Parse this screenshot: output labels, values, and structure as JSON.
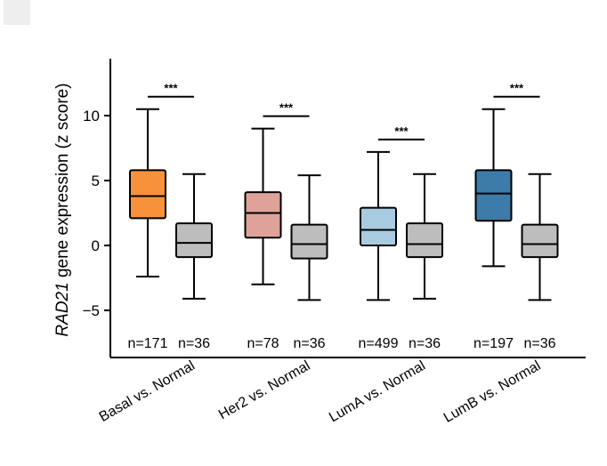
{
  "chart_data": {
    "type": "boxplot",
    "title": "",
    "ylabel_italic": "RAD21",
    "ylabel_rest": " gene expression (z score)",
    "ylim": [
      -8.5,
      14.5
    ],
    "yticks": [
      {
        "value": 10,
        "label": "10"
      },
      {
        "value": 5,
        "label": "5"
      },
      {
        "value": 0,
        "label": "0"
      },
      {
        "value": -5,
        "label": "−5"
      }
    ],
    "groups": [
      {
        "category": "Basal vs. Normal",
        "significance": "***",
        "boxes": [
          {
            "name": "Basal",
            "n_label": "n=171",
            "color": "#f7923a",
            "whisker_low": -2.4,
            "q1": 2.1,
            "median": 3.8,
            "q3": 5.8,
            "whisker_high": 10.5
          },
          {
            "name": "Normal",
            "n_label": "n=36",
            "color": "#bdbdbd",
            "whisker_low": -4.1,
            "q1": -0.9,
            "median": 0.2,
            "q3": 1.7,
            "whisker_high": 5.5
          }
        ]
      },
      {
        "category": "Her2 vs. Normal",
        "significance": "***",
        "boxes": [
          {
            "name": "Her2",
            "n_label": "n=78",
            "color": "#dea29a",
            "whisker_low": -3.0,
            "q1": 0.6,
            "median": 2.5,
            "q3": 4.1,
            "whisker_high": 9.0
          },
          {
            "name": "Normal",
            "n_label": "n=36",
            "color": "#bdbdbd",
            "whisker_low": -4.2,
            "q1": -1.0,
            "median": 0.1,
            "q3": 1.6,
            "whisker_high": 5.4
          }
        ]
      },
      {
        "category": "LumA vs. Normal",
        "significance": "***",
        "boxes": [
          {
            "name": "LumA",
            "n_label": "n=499",
            "color": "#a9cbe0",
            "whisker_low": -4.2,
            "q1": 0.0,
            "median": 1.2,
            "q3": 2.9,
            "whisker_high": 7.2
          },
          {
            "name": "Normal",
            "n_label": "n=36",
            "color": "#bdbdbd",
            "whisker_low": -4.1,
            "q1": -0.9,
            "median": 0.1,
            "q3": 1.7,
            "whisker_high": 5.5
          }
        ]
      },
      {
        "category": "LumB vs. Normal",
        "significance": "***",
        "boxes": [
          {
            "name": "LumB",
            "n_label": "n=197",
            "color": "#3d7ba9",
            "whisker_low": -1.6,
            "q1": 1.9,
            "median": 4.0,
            "q3": 5.8,
            "whisker_high": 10.5
          },
          {
            "name": "Normal",
            "n_label": "n=36",
            "color": "#bdbdbd",
            "whisker_low": -4.2,
            "q1": -0.9,
            "median": 0.1,
            "q3": 1.6,
            "whisker_high": 5.5
          }
        ]
      }
    ]
  }
}
